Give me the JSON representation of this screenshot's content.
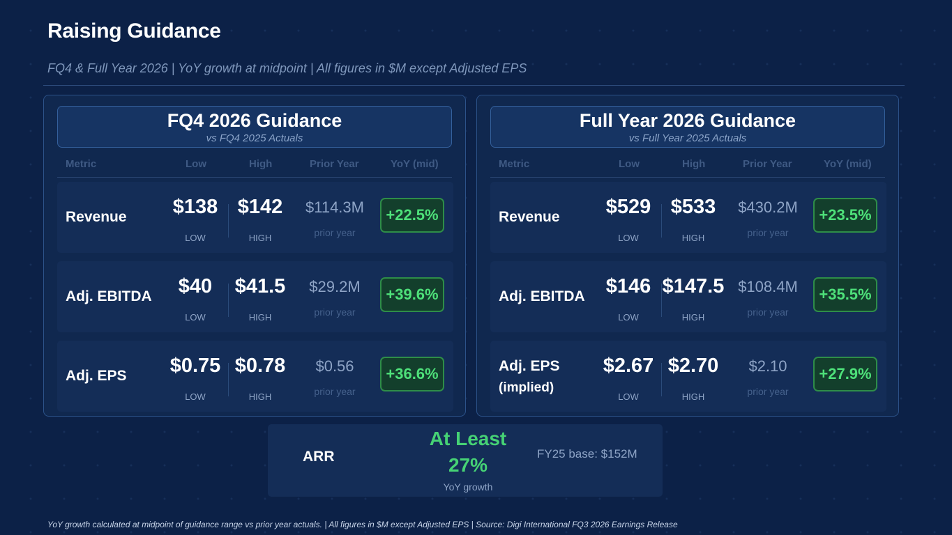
{
  "title": "Raising Guidance",
  "subtitle": "FQ4 & Full Year 2026  |  YoY growth at midpoint  |  All figures in $M except Adjusted EPS",
  "columns": [
    "Metric",
    "Low",
    "High",
    "Prior Year",
    "YoY (mid)"
  ],
  "panels": [
    {
      "title": "FQ4 2026 Guidance",
      "subtitle": "vs FQ4 2025 Actuals",
      "rows": [
        {
          "metric": "Revenue",
          "metric_note": "",
          "low": "$138",
          "low_label": "LOW",
          "high": "$142",
          "high_label": "HIGH",
          "prior": "$114.3M",
          "prior_label": "prior year",
          "yoy": "+22.5%"
        },
        {
          "metric": "Adj. EBITDA",
          "metric_note": "",
          "low": "$40",
          "low_label": "LOW",
          "high": "$41.5",
          "high_label": "HIGH",
          "prior": "$29.2M",
          "prior_label": "prior year",
          "yoy": "+39.6%"
        },
        {
          "metric": "Adj. EPS",
          "metric_note": "",
          "low": "$0.75",
          "low_label": "LOW",
          "high": "$0.78",
          "high_label": "HIGH",
          "prior": "$0.56",
          "prior_label": "prior year",
          "yoy": "+36.6%"
        }
      ]
    },
    {
      "title": "Full Year 2026 Guidance",
      "subtitle": "vs Full Year 2025 Actuals",
      "rows": [
        {
          "metric": "Revenue",
          "metric_note": "",
          "low": "$529",
          "low_label": "LOW",
          "high": "$533",
          "high_label": "HIGH",
          "prior": "$430.2M",
          "prior_label": "prior year",
          "yoy": "+23.5%"
        },
        {
          "metric": "Adj. EBITDA",
          "metric_note": "",
          "low": "$146",
          "low_label": "LOW",
          "high": "$147.5",
          "high_label": "HIGH",
          "prior": "$108.4M",
          "prior_label": "prior year",
          "yoy": "+35.5%"
        },
        {
          "metric": "Adj. EPS",
          "metric_note": "(implied)",
          "low": "$2.67",
          "low_label": "LOW",
          "high": "$2.70",
          "high_label": "HIGH",
          "prior": "$2.10",
          "prior_label": "prior year",
          "yoy": "+27.9%"
        }
      ]
    }
  ],
  "arr": {
    "label": "ARR",
    "value_line1": "At Least",
    "value_line2": "27%",
    "caption": "YoY growth",
    "base": "FY25 base: $152M"
  },
  "footer": "YoY growth calculated at midpoint of guidance range vs prior year actuals.  |  All figures in $M except Adjusted EPS  |  Source: Digi International FQ3 2026 Earnings Release",
  "colors": {
    "background": "#0c2147",
    "positive": "#4ee17a",
    "panel_border": "#2c5289"
  }
}
